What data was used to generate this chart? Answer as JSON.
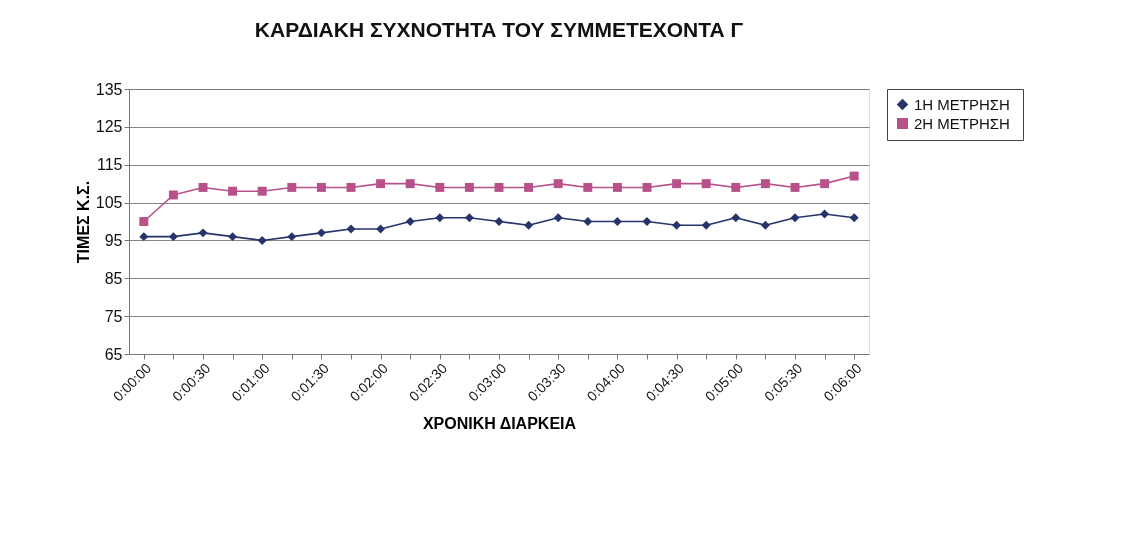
{
  "chart_data": {
    "type": "line",
    "title": "ΚΑΡΔΙΑΚΗ ΣΥΧΝΟΤΗΤΑ ΤΟΥ ΣΥΜΜΕΤΕΧΟΝΤΑ Γ",
    "xlabel": "ΧΡΟΝΙΚΗ ΔΙΑΡΚΕΙΑ",
    "ylabel": "ΤΙΜΕΣ Κ.Σ.",
    "categories": [
      "0:00:00",
      null,
      "0:00:30",
      null,
      "0:01:00",
      null,
      "0:01:30",
      null,
      "0:02:00",
      null,
      "0:02:30",
      null,
      "0:03:00",
      null,
      "0:03:30",
      null,
      "0:04:00",
      null,
      "0:04:30",
      null,
      "0:05:00",
      null,
      "0:05:30",
      null,
      "0:06:00"
    ],
    "series": [
      {
        "name": "1Η  ΜΕΤΡΗΣΗ",
        "color": "#27336b",
        "marker": "diamond",
        "values": [
          96,
          96,
          97,
          96,
          95,
          96,
          97,
          98,
          98,
          100,
          101,
          101,
          100,
          99,
          101,
          100,
          100,
          100,
          99,
          99,
          101,
          99,
          101,
          102,
          101
        ]
      },
      {
        "name": "2Η  ΜΕΤΡΗΣΗ",
        "color": "#b8508a",
        "marker": "square",
        "values": [
          100,
          107,
          109,
          108,
          108,
          109,
          109,
          109,
          110,
          110,
          109,
          109,
          109,
          109,
          110,
          109,
          109,
          109,
          110,
          110,
          109,
          110,
          109,
          110,
          112
        ]
      }
    ],
    "ylim": [
      65,
      135
    ],
    "yticks": [
      65,
      75,
      85,
      95,
      105,
      115,
      125,
      135
    ],
    "grid": "y",
    "legend": "right",
    "line_style": "solid"
  }
}
